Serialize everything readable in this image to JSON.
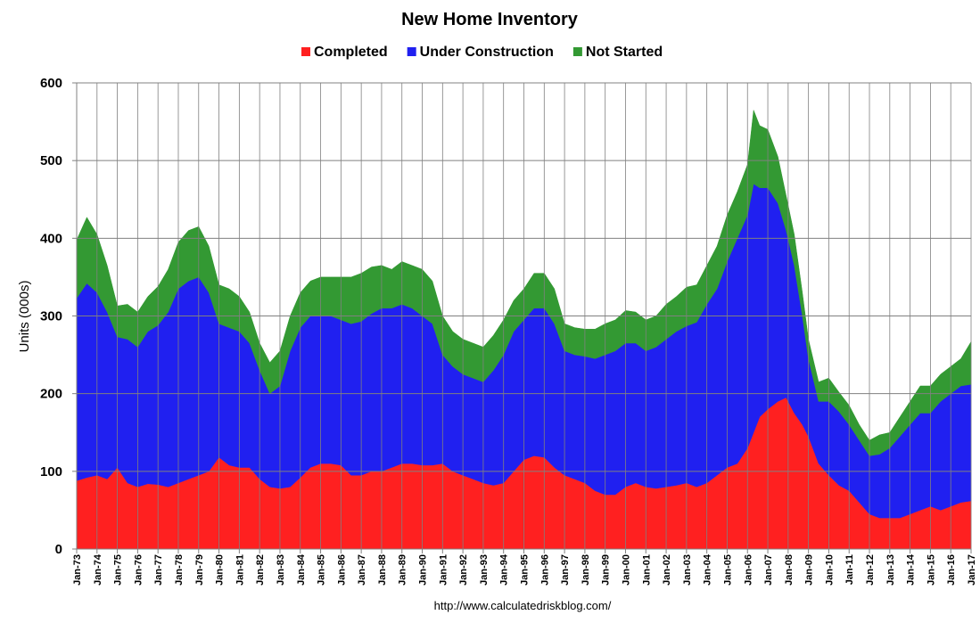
{
  "chart_data": {
    "type": "area",
    "stacked": true,
    "title": "New Home Inventory",
    "ylabel": "Units (000s)",
    "xlabel": "",
    "ylim": [
      0,
      600
    ],
    "yticks": [
      0,
      100,
      200,
      300,
      400,
      500,
      600
    ],
    "grid": true,
    "legend_position": "top-center",
    "source": "http://www.calculatedriskblog.com/",
    "x_start_year": 1973,
    "x_end_year": 2017,
    "categories": [
      "Jan-73",
      "Jan-74",
      "Jan-75",
      "Jan-76",
      "Jan-77",
      "Jan-78",
      "Jan-79",
      "Jan-80",
      "Jan-81",
      "Jan-82",
      "Jan-83",
      "Jan-84",
      "Jan-85",
      "Jan-86",
      "Jan-87",
      "Jan-88",
      "Jan-89",
      "Jan-90",
      "Jan-91",
      "Jan-92",
      "Jan-93",
      "Jan-94",
      "Jan-95",
      "Jan-96",
      "Jan-97",
      "Jan-98",
      "Jan-99",
      "Jan-00",
      "Jan-01",
      "Jan-02",
      "Jan-03",
      "Jan-04",
      "Jan-05",
      "Jan-06",
      "Jan-07",
      "Jan-08",
      "Jan-09",
      "Jan-10",
      "Jan-11",
      "Jan-12",
      "Jan-13",
      "Jan-14",
      "Jan-15",
      "Jan-16",
      "Jan-17"
    ],
    "points": [
      {
        "x": 1973.0,
        "c": 88,
        "u": 235,
        "n": 75
      },
      {
        "x": 1973.5,
        "c": 92,
        "u": 250,
        "n": 85
      },
      {
        "x": 1974.0,
        "c": 95,
        "u": 235,
        "n": 75
      },
      {
        "x": 1974.5,
        "c": 90,
        "u": 215,
        "n": 60
      },
      {
        "x": 1975.0,
        "c": 105,
        "u": 168,
        "n": 40
      },
      {
        "x": 1975.5,
        "c": 85,
        "u": 185,
        "n": 45
      },
      {
        "x": 1976.0,
        "c": 80,
        "u": 180,
        "n": 45
      },
      {
        "x": 1976.5,
        "c": 84,
        "u": 196,
        "n": 45
      },
      {
        "x": 1977.0,
        "c": 83,
        "u": 205,
        "n": 50
      },
      {
        "x": 1977.5,
        "c": 80,
        "u": 225,
        "n": 55
      },
      {
        "x": 1978.0,
        "c": 85,
        "u": 250,
        "n": 60
      },
      {
        "x": 1978.5,
        "c": 90,
        "u": 255,
        "n": 65
      },
      {
        "x": 1979.0,
        "c": 95,
        "u": 255,
        "n": 65
      },
      {
        "x": 1979.5,
        "c": 100,
        "u": 230,
        "n": 60
      },
      {
        "x": 1980.0,
        "c": 118,
        "u": 172,
        "n": 50
      },
      {
        "x": 1980.5,
        "c": 108,
        "u": 177,
        "n": 50
      },
      {
        "x": 1981.0,
        "c": 105,
        "u": 175,
        "n": 45
      },
      {
        "x": 1981.5,
        "c": 105,
        "u": 160,
        "n": 40
      },
      {
        "x": 1982.0,
        "c": 90,
        "u": 140,
        "n": 35
      },
      {
        "x": 1982.5,
        "c": 80,
        "u": 120,
        "n": 40
      },
      {
        "x": 1983.0,
        "c": 78,
        "u": 132,
        "n": 45
      },
      {
        "x": 1983.5,
        "c": 80,
        "u": 175,
        "n": 45
      },
      {
        "x": 1984.0,
        "c": 92,
        "u": 193,
        "n": 45
      },
      {
        "x": 1984.5,
        "c": 105,
        "u": 195,
        "n": 45
      },
      {
        "x": 1985.0,
        "c": 110,
        "u": 190,
        "n": 50
      },
      {
        "x": 1985.5,
        "c": 110,
        "u": 190,
        "n": 50
      },
      {
        "x": 1986.0,
        "c": 108,
        "u": 187,
        "n": 55
      },
      {
        "x": 1986.5,
        "c": 95,
        "u": 195,
        "n": 60
      },
      {
        "x": 1987.0,
        "c": 95,
        "u": 198,
        "n": 62
      },
      {
        "x": 1987.5,
        "c": 100,
        "u": 203,
        "n": 60
      },
      {
        "x": 1988.0,
        "c": 100,
        "u": 210,
        "n": 55
      },
      {
        "x": 1988.5,
        "c": 105,
        "u": 205,
        "n": 50
      },
      {
        "x": 1989.0,
        "c": 110,
        "u": 205,
        "n": 55
      },
      {
        "x": 1989.5,
        "c": 110,
        "u": 200,
        "n": 55
      },
      {
        "x": 1990.0,
        "c": 108,
        "u": 192,
        "n": 60
      },
      {
        "x": 1990.5,
        "c": 108,
        "u": 182,
        "n": 55
      },
      {
        "x": 1991.0,
        "c": 110,
        "u": 140,
        "n": 50
      },
      {
        "x": 1991.5,
        "c": 100,
        "u": 135,
        "n": 45
      },
      {
        "x": 1992.0,
        "c": 95,
        "u": 130,
        "n": 45
      },
      {
        "x": 1992.5,
        "c": 90,
        "u": 130,
        "n": 45
      },
      {
        "x": 1993.0,
        "c": 85,
        "u": 130,
        "n": 45
      },
      {
        "x": 1993.5,
        "c": 82,
        "u": 148,
        "n": 45
      },
      {
        "x": 1994.0,
        "c": 85,
        "u": 165,
        "n": 45
      },
      {
        "x": 1994.5,
        "c": 100,
        "u": 180,
        "n": 40
      },
      {
        "x": 1995.0,
        "c": 115,
        "u": 180,
        "n": 40
      },
      {
        "x": 1995.5,
        "c": 120,
        "u": 190,
        "n": 45
      },
      {
        "x": 1996.0,
        "c": 118,
        "u": 192,
        "n": 45
      },
      {
        "x": 1996.5,
        "c": 105,
        "u": 185,
        "n": 45
      },
      {
        "x": 1997.0,
        "c": 95,
        "u": 160,
        "n": 35
      },
      {
        "x": 1997.5,
        "c": 90,
        "u": 160,
        "n": 35
      },
      {
        "x": 1998.0,
        "c": 85,
        "u": 163,
        "n": 35
      },
      {
        "x": 1998.5,
        "c": 75,
        "u": 170,
        "n": 38
      },
      {
        "x": 1999.0,
        "c": 70,
        "u": 180,
        "n": 40
      },
      {
        "x": 1999.5,
        "c": 70,
        "u": 185,
        "n": 40
      },
      {
        "x": 2000.0,
        "c": 80,
        "u": 185,
        "n": 42
      },
      {
        "x": 2000.5,
        "c": 85,
        "u": 180,
        "n": 40
      },
      {
        "x": 2001.0,
        "c": 80,
        "u": 175,
        "n": 40
      },
      {
        "x": 2001.5,
        "c": 78,
        "u": 182,
        "n": 40
      },
      {
        "x": 2002.0,
        "c": 80,
        "u": 190,
        "n": 45
      },
      {
        "x": 2002.5,
        "c": 82,
        "u": 198,
        "n": 45
      },
      {
        "x": 2003.0,
        "c": 85,
        "u": 202,
        "n": 50
      },
      {
        "x": 2003.5,
        "c": 80,
        "u": 212,
        "n": 48
      },
      {
        "x": 2004.0,
        "c": 85,
        "u": 230,
        "n": 50
      },
      {
        "x": 2004.5,
        "c": 95,
        "u": 240,
        "n": 55
      },
      {
        "x": 2005.0,
        "c": 105,
        "u": 265,
        "n": 60
      },
      {
        "x": 2005.5,
        "c": 110,
        "u": 290,
        "n": 60
      },
      {
        "x": 2006.0,
        "c": 130,
        "u": 300,
        "n": 65
      },
      {
        "x": 2006.3,
        "c": 150,
        "u": 320,
        "n": 95
      },
      {
        "x": 2006.6,
        "c": 170,
        "u": 295,
        "n": 80
      },
      {
        "x": 2007.0,
        "c": 180,
        "u": 285,
        "n": 75
      },
      {
        "x": 2007.5,
        "c": 190,
        "u": 255,
        "n": 60
      },
      {
        "x": 2007.9,
        "c": 195,
        "u": 215,
        "n": 45
      },
      {
        "x": 2008.3,
        "c": 175,
        "u": 190,
        "n": 40
      },
      {
        "x": 2008.7,
        "c": 160,
        "u": 140,
        "n": 30
      },
      {
        "x": 2009.0,
        "c": 145,
        "u": 100,
        "n": 25
      },
      {
        "x": 2009.5,
        "c": 110,
        "u": 80,
        "n": 25
      },
      {
        "x": 2010.0,
        "c": 95,
        "u": 95,
        "n": 30
      },
      {
        "x": 2010.5,
        "c": 82,
        "u": 95,
        "n": 25
      },
      {
        "x": 2011.0,
        "c": 75,
        "u": 85,
        "n": 25
      },
      {
        "x": 2011.5,
        "c": 60,
        "u": 80,
        "n": 20
      },
      {
        "x": 2012.0,
        "c": 45,
        "u": 75,
        "n": 20
      },
      {
        "x": 2012.5,
        "c": 40,
        "u": 82,
        "n": 25
      },
      {
        "x": 2013.0,
        "c": 40,
        "u": 90,
        "n": 20
      },
      {
        "x": 2013.5,
        "c": 40,
        "u": 105,
        "n": 25
      },
      {
        "x": 2014.0,
        "c": 45,
        "u": 115,
        "n": 30
      },
      {
        "x": 2014.5,
        "c": 50,
        "u": 125,
        "n": 35
      },
      {
        "x": 2015.0,
        "c": 55,
        "u": 120,
        "n": 35
      },
      {
        "x": 2015.5,
        "c": 50,
        "u": 140,
        "n": 35
      },
      {
        "x": 2016.0,
        "c": 55,
        "u": 145,
        "n": 35
      },
      {
        "x": 2016.5,
        "c": 60,
        "u": 150,
        "n": 35
      },
      {
        "x": 2017.0,
        "c": 62,
        "u": 150,
        "n": 55
      }
    ],
    "series": [
      {
        "name": "Completed",
        "key": "c",
        "color": "#ff2020"
      },
      {
        "name": "Under Construction",
        "key": "u",
        "color": "#2020f0"
      },
      {
        "name": "Not Started",
        "key": "n",
        "color": "#339933"
      }
    ]
  }
}
